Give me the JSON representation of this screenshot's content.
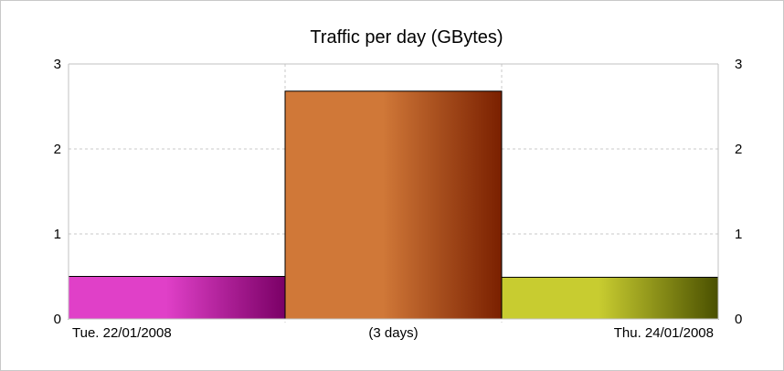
{
  "chart_data": {
    "type": "bar",
    "title": "Traffic per day  (GBytes)",
    "xlabel": "",
    "ylabel": "",
    "ylim": [
      0,
      3
    ],
    "yticks": [
      0,
      1,
      2,
      3
    ],
    "grid": true,
    "secondary_y_axis": true,
    "categories": [
      "Tue. 22/01/2008",
      "(3 days)",
      "Thu. 24/01/2008"
    ],
    "values": [
      0.5,
      2.68,
      0.49
    ],
    "colors": [
      {
        "light": "#e040c8",
        "dark": "#7a0066"
      },
      {
        "light": "#d07838",
        "dark": "#7a2000"
      },
      {
        "light": "#c8cc30",
        "dark": "#4a5000"
      }
    ]
  }
}
